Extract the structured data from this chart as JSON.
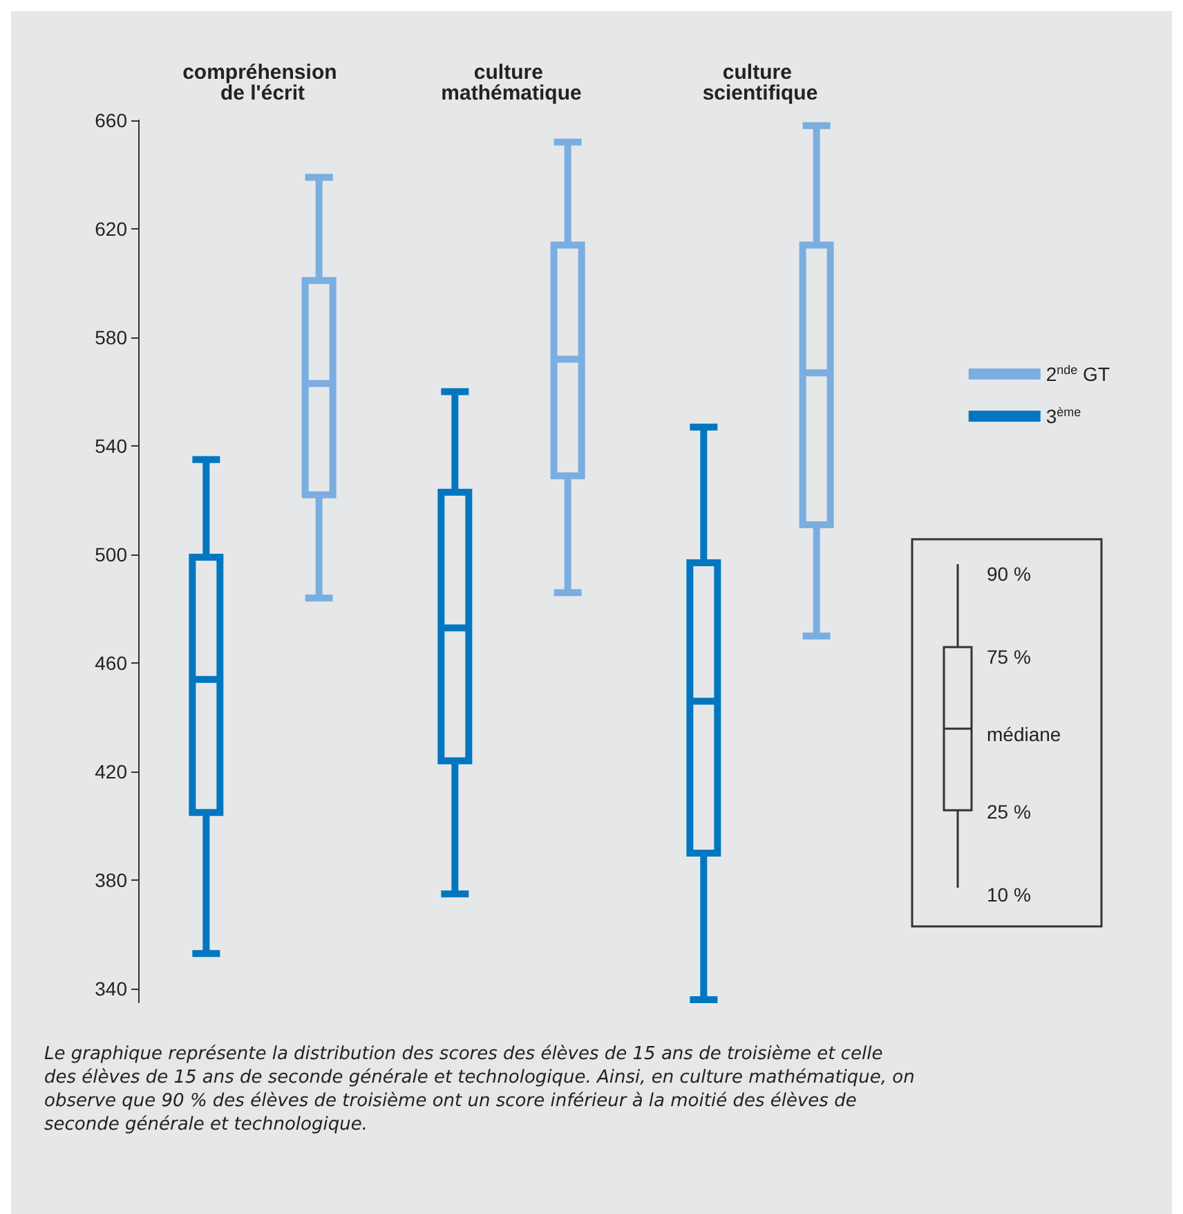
{
  "chart_data": {
    "type": "box",
    "categories": [
      "compréhension de l'écrit",
      "culture mathématique",
      "culture scientifique"
    ],
    "series": [
      {
        "name": "2$^{nde}$ GT",
        "color": "#7aaee0",
        "boxes": [
          {
            "low": 484,
            "q1": 522,
            "median": 563,
            "q3": 601,
            "high": 639
          },
          {
            "low": 486,
            "q1": 529,
            "median": 572,
            "q3": 614,
            "high": 652
          },
          {
            "low": 470,
            "q1": 511,
            "median": 567,
            "q3": 614,
            "high": 658
          }
        ]
      },
      {
        "name": "3$^{ème}$",
        "color": "#0277c0",
        "boxes": [
          {
            "low": 353,
            "q1": 405,
            "median": 454,
            "q3": 499,
            "high": 535
          },
          {
            "low": 375,
            "q1": 424,
            "median": 473,
            "q3": 523,
            "high": 560
          },
          {
            "low": 336,
            "q1": 390,
            "median": 446,
            "q3": 497,
            "high": 547
          }
        ]
      }
    ],
    "ylim": [
      335,
      660
    ],
    "yticks": [
      340,
      380,
      420,
      460,
      500,
      540,
      580,
      620,
      660
    ],
    "grid": false,
    "legend": "right",
    "annotations": [
      "90 %",
      "75 %",
      "médiane",
      "25 %",
      "10 %",
      "Le graphique représente la distribution des scores des élèves de 15 ans de troisième et celle des élèves de 15 ans de seconde générale et technologique. Ainsi, en culture mathématique, on observe que 90 % des élèves de troisième ont un score inférieur à la moitié des élèves de seconde générale et technologique."
    ]
  }
}
